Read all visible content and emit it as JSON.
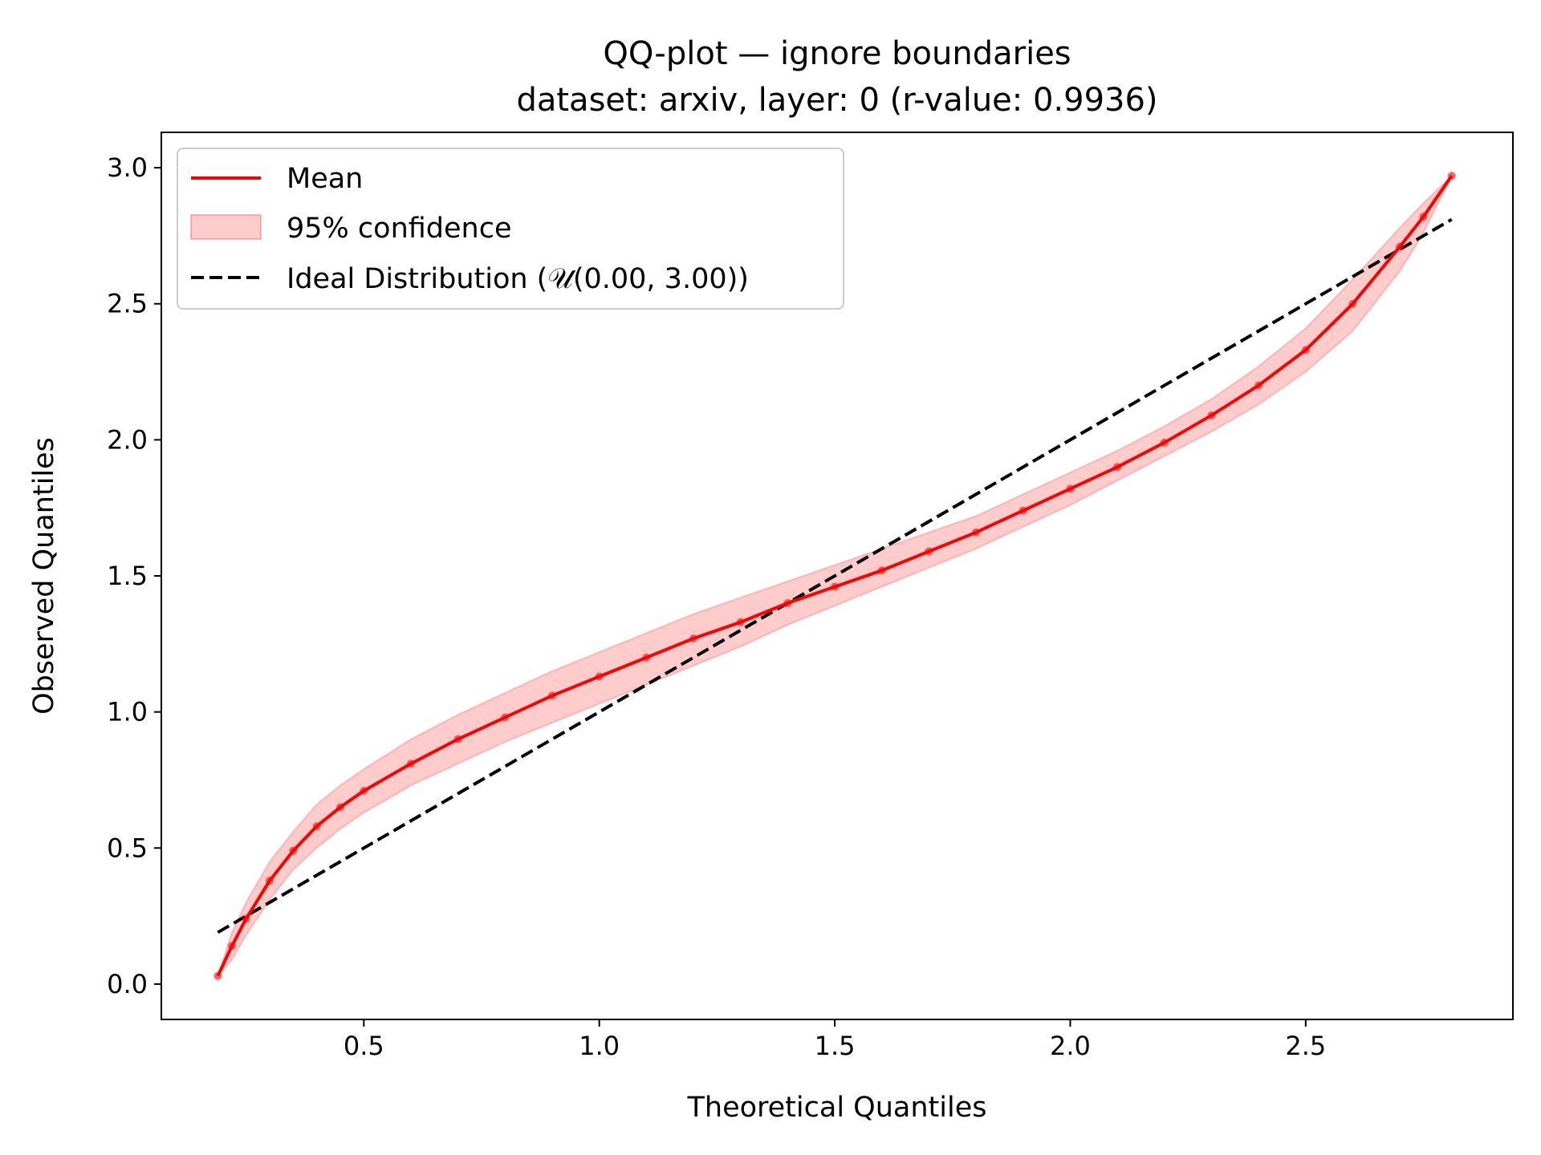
{
  "chart_data": {
    "type": "line",
    "title": "QQ-plot — ignore boundaries",
    "subtitle": "dataset: arxiv, layer: 0 (r-value: 0.9936)",
    "xlabel": "Theoretical Quantiles",
    "ylabel": "Observed Quantiles",
    "xlim": [
      0.07,
      2.94
    ],
    "ylim": [
      -0.13,
      3.13
    ],
    "xticks": [
      0.5,
      1.0,
      1.5,
      2.0,
      2.5
    ],
    "xtick_labels": [
      "0.5",
      "1.0",
      "1.5",
      "2.0",
      "2.5"
    ],
    "yticks": [
      0.0,
      0.5,
      1.0,
      1.5,
      2.0,
      2.5,
      3.0
    ],
    "ytick_labels": [
      "0.0",
      "0.5",
      "1.0",
      "1.5",
      "2.0",
      "2.5",
      "3.0"
    ],
    "grid": false,
    "legend_position": "top-left",
    "legend": [
      {
        "label": "Mean",
        "kind": "line",
        "color": "#ff0000"
      },
      {
        "label": "95% confidence",
        "kind": "band",
        "color": "#ff0000"
      },
      {
        "label": "Ideal Distribution (𝒰(0.00, 3.00))",
        "kind": "dashed",
        "color": "#000000"
      }
    ],
    "series": [
      {
        "name": "Mean",
        "color": "#ff0000",
        "x": [
          0.19,
          0.22,
          0.25,
          0.3,
          0.35,
          0.4,
          0.45,
          0.5,
          0.6,
          0.7,
          0.8,
          0.9,
          1.0,
          1.1,
          1.2,
          1.3,
          1.4,
          1.5,
          1.6,
          1.7,
          1.8,
          1.9,
          2.0,
          2.1,
          2.2,
          2.3,
          2.4,
          2.5,
          2.6,
          2.7,
          2.75,
          2.81
        ],
        "y": [
          0.03,
          0.14,
          0.24,
          0.38,
          0.49,
          0.58,
          0.65,
          0.71,
          0.81,
          0.9,
          0.98,
          1.06,
          1.13,
          1.2,
          1.27,
          1.33,
          1.4,
          1.46,
          1.52,
          1.59,
          1.66,
          1.74,
          1.82,
          1.9,
          1.99,
          2.09,
          2.2,
          2.33,
          2.5,
          2.71,
          2.82,
          2.97
        ]
      },
      {
        "name": "95% confidence",
        "color": "#ff0000",
        "x": [
          0.19,
          0.22,
          0.25,
          0.3,
          0.35,
          0.4,
          0.45,
          0.5,
          0.6,
          0.7,
          0.8,
          0.9,
          1.0,
          1.1,
          1.2,
          1.3,
          1.4,
          1.5,
          1.6,
          1.7,
          1.8,
          1.9,
          2.0,
          2.1,
          2.2,
          2.3,
          2.4,
          2.5,
          2.6,
          2.7,
          2.75,
          2.81
        ],
        "lower": [
          0.03,
          0.09,
          0.18,
          0.31,
          0.42,
          0.5,
          0.57,
          0.63,
          0.73,
          0.81,
          0.89,
          0.96,
          1.03,
          1.1,
          1.17,
          1.24,
          1.32,
          1.39,
          1.46,
          1.53,
          1.6,
          1.68,
          1.76,
          1.85,
          1.94,
          2.03,
          2.13,
          2.25,
          2.4,
          2.62,
          2.76,
          2.97
        ],
        "upper": [
          0.03,
          0.19,
          0.3,
          0.45,
          0.56,
          0.66,
          0.73,
          0.79,
          0.9,
          0.99,
          1.07,
          1.15,
          1.22,
          1.29,
          1.36,
          1.42,
          1.48,
          1.54,
          1.6,
          1.66,
          1.72,
          1.8,
          1.88,
          1.96,
          2.05,
          2.15,
          2.27,
          2.41,
          2.59,
          2.78,
          2.87,
          2.97
        ]
      },
      {
        "name": "Ideal Distribution (𝒰(0.00, 3.00))",
        "color": "#000000",
        "dashed": true,
        "x": [
          0.19,
          2.81
        ],
        "y": [
          0.19,
          2.81
        ]
      }
    ]
  }
}
